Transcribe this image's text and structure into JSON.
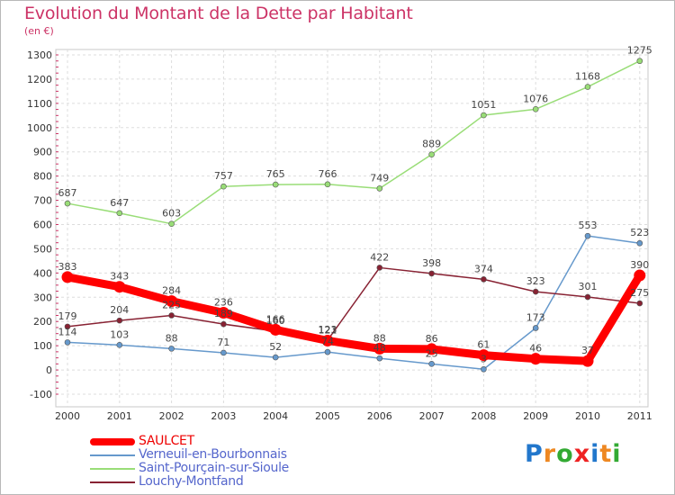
{
  "chart_data": {
    "type": "line",
    "title": "Evolution du Montant de la Dette par Habitant",
    "unit": "(en €)",
    "xlabel": "",
    "ylabel": "",
    "x": [
      "2000",
      "2001",
      "2002",
      "2003",
      "2004",
      "2005",
      "2006",
      "2007",
      "2008",
      "2009",
      "2010",
      "2011"
    ],
    "ylim": [
      -100,
      1300
    ],
    "yticks": [
      -100,
      0,
      100,
      200,
      300,
      400,
      500,
      600,
      700,
      800,
      900,
      1000,
      1100,
      1200,
      1300
    ],
    "grid": true,
    "legend_position": "bottom-left",
    "series": [
      {
        "name": "Verneuil-en-Bourbonnais",
        "color": "#6699cc",
        "labels": true,
        "values": [
          114,
          103,
          88,
          71,
          52,
          74,
          48,
          25,
          3,
          173,
          553,
          523
        ]
      },
      {
        "name": "Saint-Pourçain-sur-Sioule",
        "color": "#99dd77",
        "labels": true,
        "values": [
          687,
          647,
          603,
          757,
          765,
          766,
          749,
          889,
          1051,
          1076,
          1168,
          1275
        ]
      },
      {
        "name": "Louchy-Montfand",
        "color": "#882233",
        "labels": true,
        "values": [
          179,
          204,
          225,
          189,
          160,
          123,
          422,
          398,
          374,
          323,
          301,
          275
        ]
      },
      {
        "name": "SAULCET",
        "color": "#ff0000",
        "labels": true,
        "bold": true,
        "values": [
          383,
          343,
          284,
          236,
          166,
          121,
          88,
          86,
          61,
          46,
          37,
          390
        ]
      }
    ]
  },
  "legend": {
    "items": [
      "SAULCET",
      "Verneuil-en-Bourbonnais",
      "Saint-Pourçain-sur-Sioule",
      "Louchy-Montfand"
    ],
    "colors": [
      "#ff0000",
      "#6699cc",
      "#99dd77",
      "#882233"
    ]
  },
  "logo": {
    "letters": [
      "P",
      "r",
      "o",
      "x",
      "i",
      "t",
      "i"
    ],
    "colors": [
      "#2277cc",
      "#ee8822",
      "#33aa33",
      "#ee2222",
      "#2277cc",
      "#ee8822",
      "#33aa33"
    ]
  }
}
